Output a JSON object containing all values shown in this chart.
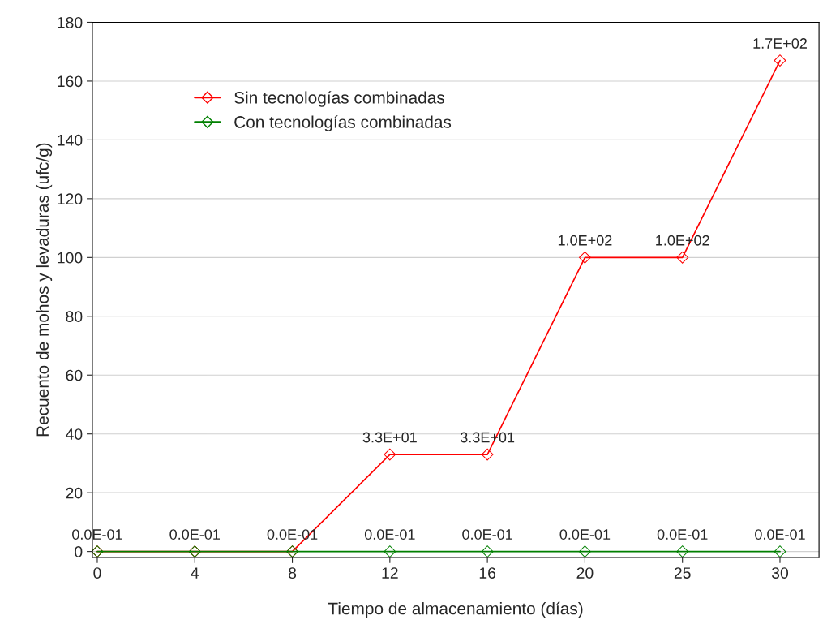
{
  "chart_data": {
    "type": "line",
    "xlabel": "Tiempo de almacenamiento (días)",
    "ylabel": "Recuento de mohos y levaduras (ufc/g)",
    "categories": [
      "0",
      "4",
      "8",
      "12",
      "16",
      "20",
      "25",
      "30"
    ],
    "series": [
      {
        "name": "Sin tecnologías combinadas",
        "color": "#ff0000",
        "values": [
          0,
          0,
          0,
          33,
          33,
          100,
          100,
          167
        ],
        "value_labels": [
          null,
          null,
          null,
          "3.3E+01",
          "3.3E+01",
          "1.0E+02",
          "1.0E+02",
          "1.7E+02"
        ]
      },
      {
        "name": "Con tecnologías combinadas",
        "color": "#008000",
        "values": [
          0,
          0,
          0,
          0,
          0,
          0,
          0,
          0
        ],
        "value_labels": [
          "0.0E-01",
          "0.0E-01",
          "0.0E-01",
          "0.0E-01",
          "0.0E-01",
          "0.0E-01",
          "0.0E-01",
          "0.0E-01"
        ]
      }
    ],
    "ylim": [
      -2,
      180
    ],
    "yticks": [
      0,
      20,
      40,
      60,
      80,
      100,
      120,
      140,
      160,
      180
    ],
    "grid": "y",
    "legend": "top left",
    "marker": "diamond",
    "line_style": "solid"
  }
}
